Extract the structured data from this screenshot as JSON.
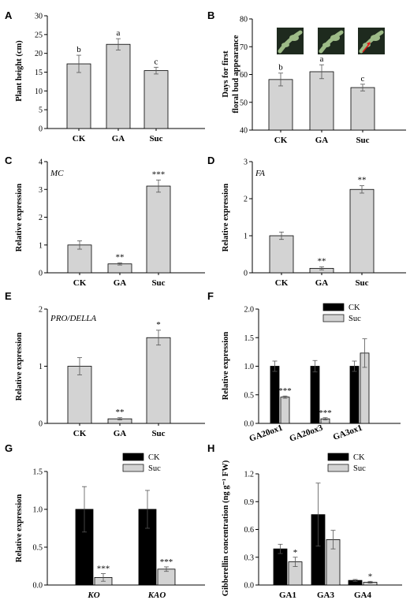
{
  "colors": {
    "ck": "#000000",
    "treat": "#d3d3d3",
    "axis": "#000000",
    "photo_bg": "#1e2a1e",
    "photo_plant": "#9dbb87",
    "arrow": "#e11a1a"
  },
  "chart_data": [
    {
      "id": "A",
      "panel": "A",
      "type": "bar",
      "categories": [
        "CK",
        "GA",
        "Suc"
      ],
      "values": [
        17.2,
        22.4,
        15.4
      ],
      "errors": [
        2.3,
        1.5,
        0.9
      ],
      "labels": [
        "b",
        "a",
        "c"
      ],
      "ylabel": "Plant height (cm)",
      "ylim": [
        0,
        30
      ],
      "yticks": [
        "0",
        "5",
        "10",
        "15",
        "20",
        "25",
        "30"
      ],
      "gene": "",
      "legend": []
    },
    {
      "id": "B",
      "panel": "B",
      "type": "bar",
      "categories": [
        "CK",
        "GA",
        "Suc"
      ],
      "values": [
        58.2,
        61.0,
        55.3
      ],
      "errors": [
        2.3,
        2.5,
        1.2
      ],
      "labels": [
        "b",
        "a",
        "c"
      ],
      "ylabel": "Days for first floral bud appearance",
      "ylim": [
        40,
        80
      ],
      "yticks": [
        "40",
        "50",
        "60",
        "70",
        "80"
      ],
      "gene": "",
      "legend": []
    },
    {
      "id": "C",
      "panel": "C",
      "type": "bar",
      "categories": [
        "CK",
        "GA",
        "Suc"
      ],
      "values": [
        1.0,
        0.32,
        3.12
      ],
      "errors": [
        0.15,
        0.04,
        0.22
      ],
      "labels": [
        "",
        "**",
        "***"
      ],
      "ylabel": "Relative expression",
      "ylim": [
        0,
        4
      ],
      "yticks": [
        "0",
        "1",
        "2",
        "3",
        "4"
      ],
      "gene": "MC",
      "legend": []
    },
    {
      "id": "D",
      "panel": "D",
      "type": "bar",
      "categories": [
        "CK",
        "GA",
        "Suc"
      ],
      "values": [
        1.0,
        0.12,
        2.25
      ],
      "errors": [
        0.1,
        0.04,
        0.1
      ],
      "labels": [
        "",
        "**",
        "**"
      ],
      "ylabel": "Relative expression",
      "ylim": [
        0,
        3
      ],
      "yticks": [
        "0",
        "1",
        "2",
        "3"
      ],
      "gene": "FA",
      "legend": []
    },
    {
      "id": "E",
      "panel": "E",
      "type": "bar",
      "categories": [
        "CK",
        "GA",
        "Suc"
      ],
      "values": [
        1.0,
        0.08,
        1.5
      ],
      "errors": [
        0.15,
        0.02,
        0.13
      ],
      "labels": [
        "",
        "**",
        "*"
      ],
      "ylabel": "Relative expression",
      "ylim": [
        0,
        2
      ],
      "yticks": [
        "0",
        "1",
        "2"
      ],
      "gene": "PRO/DELLA",
      "legend": []
    },
    {
      "id": "F",
      "panel": "F",
      "type": "bar",
      "categories": [
        "GA20ox1",
        "GA20ox3",
        "GA3ox1"
      ],
      "series": [
        {
          "name": "CK",
          "values": [
            1.0,
            1.0,
            1.0
          ],
          "errors": [
            0.09,
            0.1,
            0.09
          ],
          "labels": [
            "",
            "",
            ""
          ]
        },
        {
          "name": "Suc",
          "values": [
            0.46,
            0.08,
            1.23
          ],
          "errors": [
            0.02,
            0.02,
            0.25
          ],
          "labels": [
            "***",
            "***",
            ""
          ]
        }
      ],
      "ylabel": "Relative expression",
      "ylim": [
        0,
        2
      ],
      "yticks": [
        "0.0",
        "0.5",
        "1.0",
        "1.5",
        "2.0"
      ],
      "legend": [
        "CK",
        "Suc"
      ],
      "legend_position": "top-right",
      "rotated_categories": true
    },
    {
      "id": "G",
      "panel": "G",
      "type": "bar",
      "categories": [
        "KO",
        "KAO"
      ],
      "series": [
        {
          "name": "CK",
          "values": [
            1.0,
            1.0
          ],
          "errors": [
            0.3,
            0.25
          ],
          "labels": [
            "",
            ""
          ]
        },
        {
          "name": "Suc",
          "values": [
            0.1,
            0.21
          ],
          "errors": [
            0.05,
            0.03
          ],
          "labels": [
            "***",
            "***"
          ]
        }
      ],
      "ylabel": "Relative expression",
      "ylim": [
        0,
        1.5
      ],
      "yticks": [
        "0.0",
        "0.5",
        "1.0",
        "1.5"
      ],
      "legend": [
        "CK",
        "Suc"
      ],
      "legend_position": "top-right",
      "italic_categories": true
    },
    {
      "id": "H",
      "panel": "H",
      "type": "bar",
      "categories": [
        "GA1",
        "GA3",
        "GA4"
      ],
      "series": [
        {
          "name": "CK",
          "values": [
            0.39,
            0.76,
            0.05
          ],
          "errors": [
            0.05,
            0.34,
            0.01
          ],
          "labels": [
            "",
            "",
            ""
          ]
        },
        {
          "name": "Suc",
          "values": [
            0.25,
            0.49,
            0.03
          ],
          "errors": [
            0.05,
            0.1,
            0.01
          ],
          "labels": [
            "*",
            "",
            "*"
          ]
        }
      ],
      "ylabel": "Gibberellin concentration (ng g⁻¹ FW)",
      "ylim": [
        0,
        1.2
      ],
      "yticks": [
        "0.0",
        "0.3",
        "0.6",
        "0.9",
        "1.2"
      ],
      "legend": [
        "CK",
        "Suc"
      ],
      "legend_position": "top-right"
    }
  ]
}
